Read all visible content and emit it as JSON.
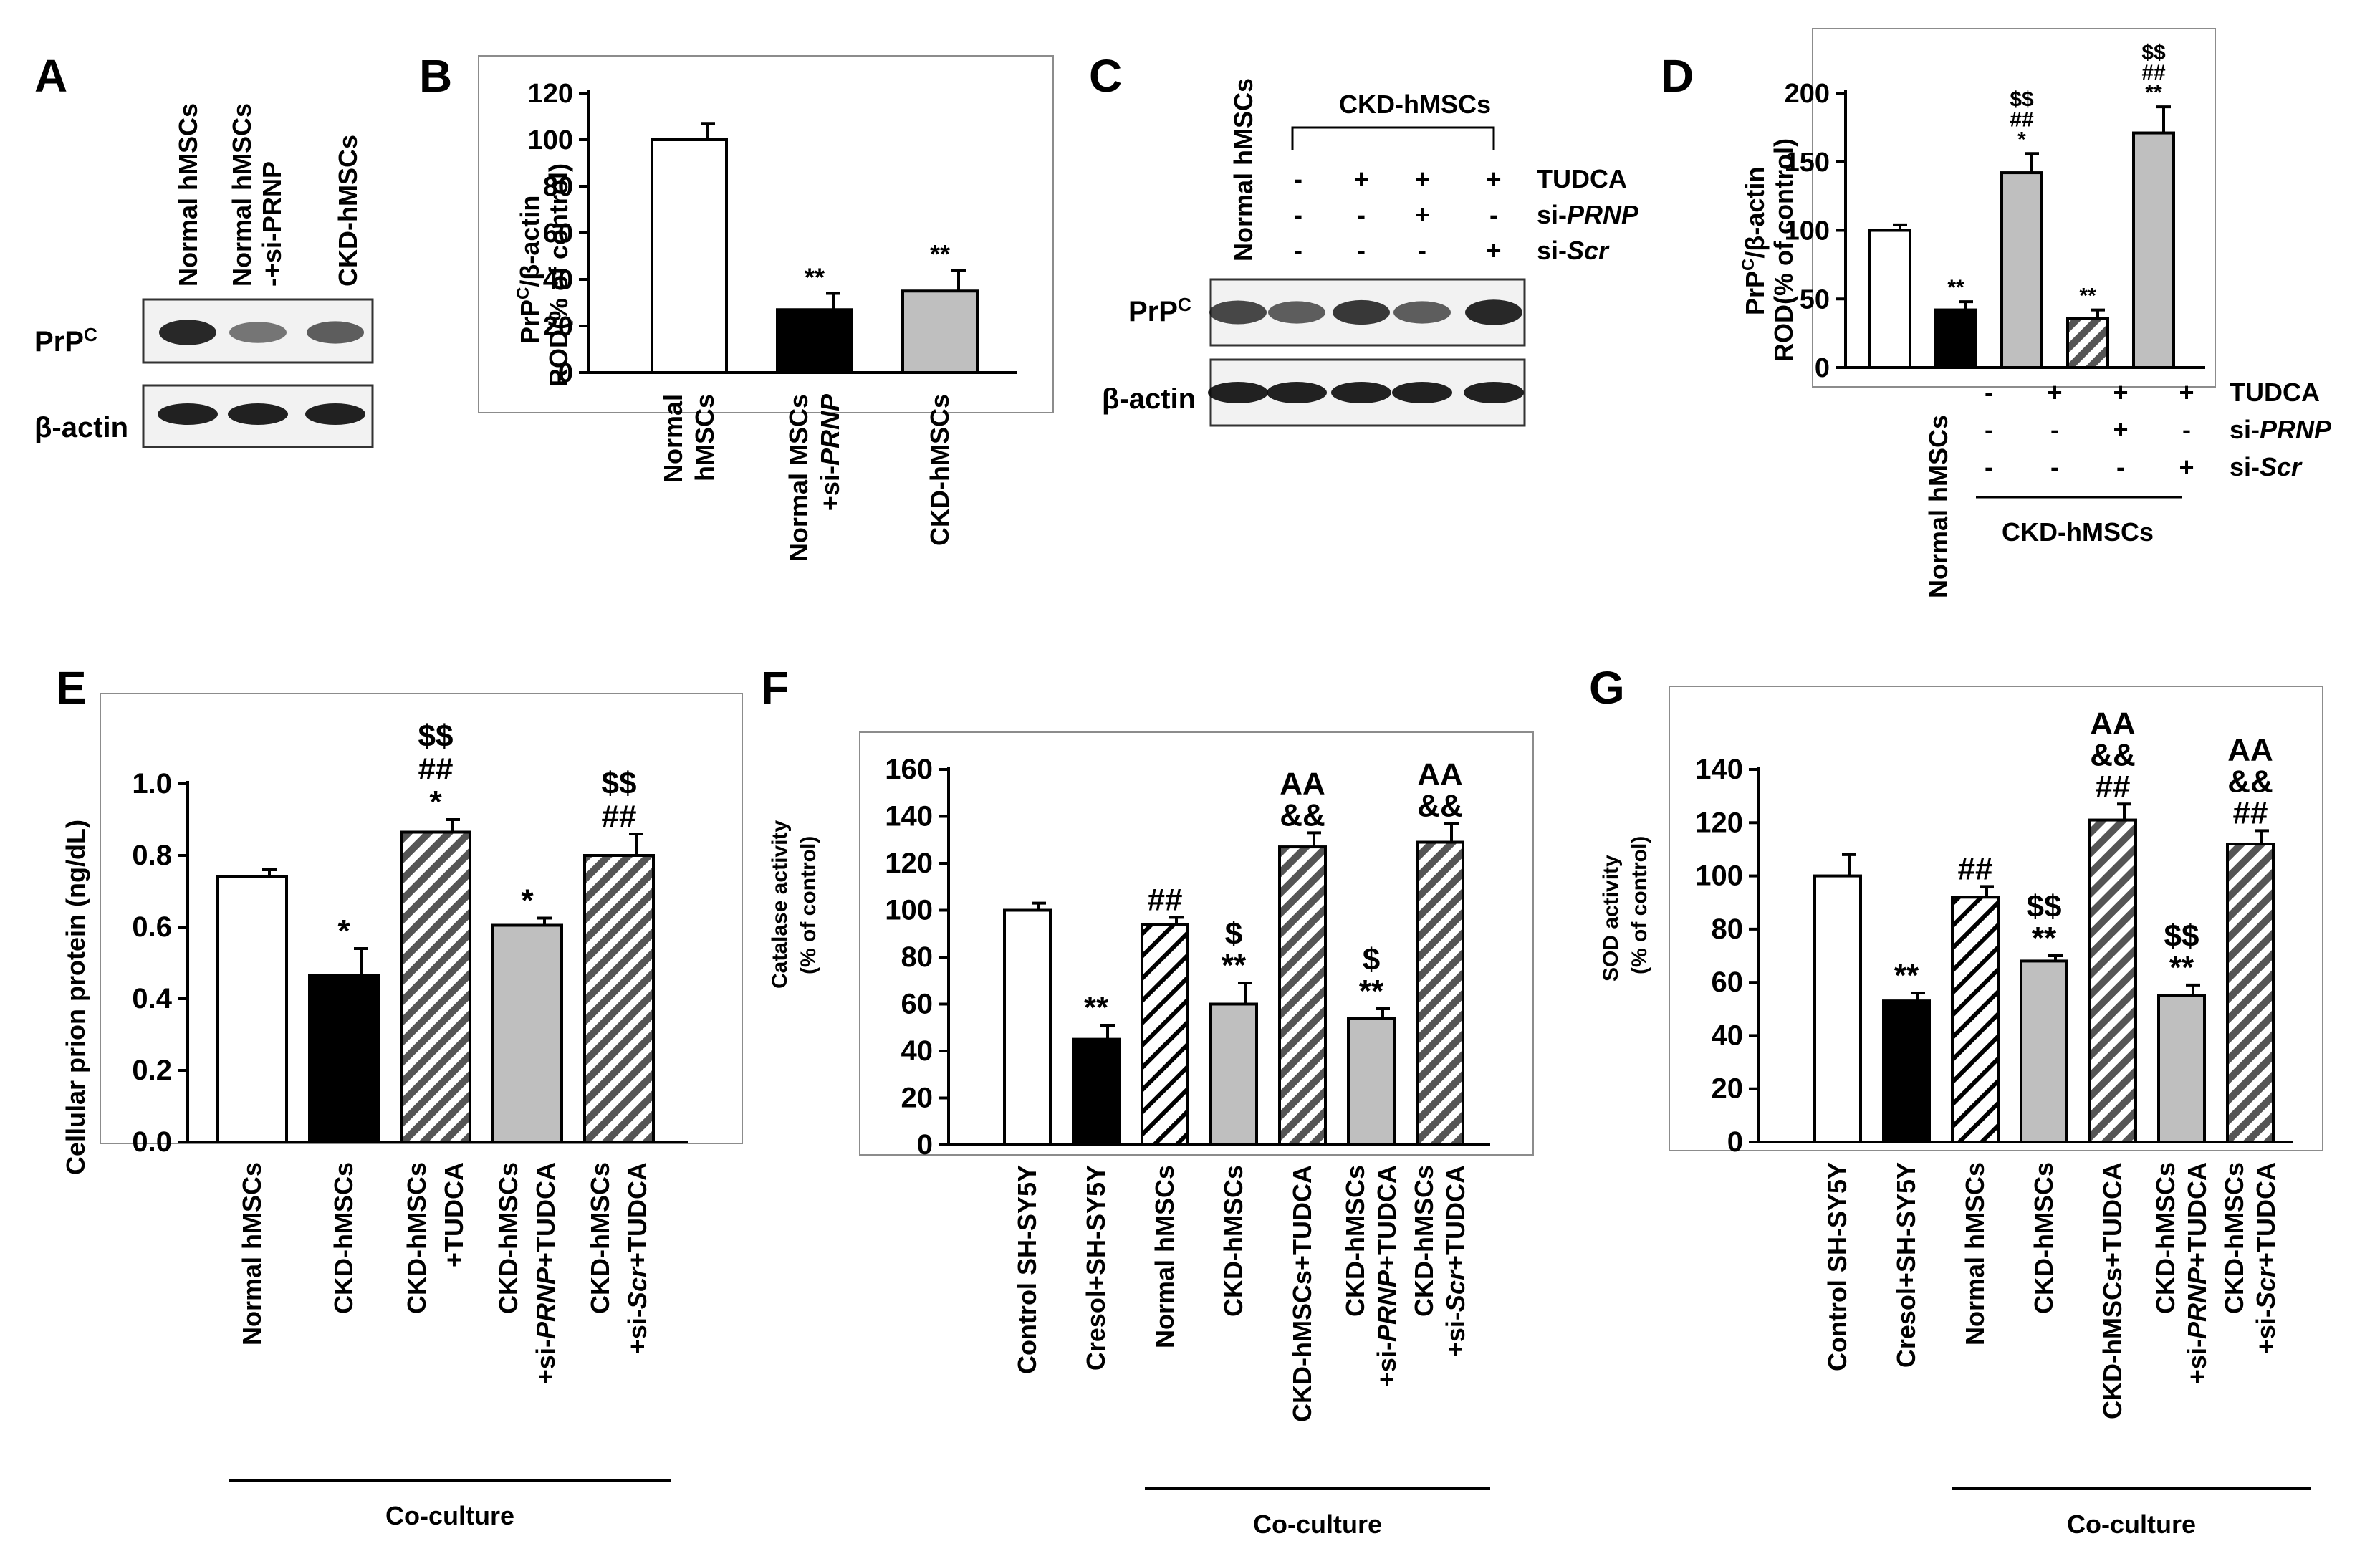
{
  "figure": {
    "panel_letters": [
      "A",
      "B",
      "C",
      "D",
      "E",
      "F",
      "G"
    ]
  },
  "blot_a": {
    "lanes": [
      "Normal hMSCs",
      "Normal hMSCs",
      "-+si-PRNP",
      "CKD-hMSCs"
    ],
    "rows": [
      "PrP",
      "C",
      "β-actin"
    ],
    "band_intensity": {
      "prp": [
        0.95,
        0.45,
        0.6
      ],
      "actin": [
        1,
        1,
        1
      ]
    }
  },
  "blot_c": {
    "top_lane_label": "Normal hMSCs",
    "group_label": "CKD-hMSCs",
    "conditions": [
      {
        "name": "TUDCA",
        "signs": [
          "-",
          "+",
          "+",
          "+"
        ]
      },
      {
        "name_prefix": "si-",
        "name_gene": "PRNP",
        "signs": [
          "-",
          "-",
          "+",
          "-"
        ]
      },
      {
        "name_prefix": "si-",
        "name_gene": "Scr",
        "signs": [
          "-",
          "-",
          "-",
          "+"
        ]
      }
    ],
    "rows": [
      "PrP",
      "C",
      "β-actin"
    ],
    "band_intensity": {
      "prp": [
        0.75,
        0.6,
        0.85,
        0.6,
        0.95
      ],
      "actin": [
        1,
        1,
        1,
        1,
        1
      ]
    }
  },
  "table_d": {
    "conditions": [
      {
        "name": "TUDCA",
        "signs": [
          "-",
          "+",
          "+",
          "+"
        ]
      },
      {
        "name_prefix": "si-",
        "name_gene": "PRNP",
        "signs": [
          "-",
          "-",
          "+",
          "-"
        ]
      },
      {
        "name_prefix": "si-",
        "name_gene": "Scr",
        "signs": [
          "-",
          "-",
          "-",
          "+"
        ]
      }
    ],
    "first_label": "Normal hMSCs",
    "group_label": "CKD-hMSCs"
  },
  "chart_data": [
    {
      "panel": "B",
      "type": "bar",
      "ylabel_line1": [
        "PrP",
        "C",
        "/β-actin"
      ],
      "ylabel_line2": "ROD(% of control)",
      "ylim": [
        0,
        120
      ],
      "yticks": [
        0,
        20,
        40,
        60,
        80,
        100,
        120
      ],
      "categories": [
        [
          "Normal",
          "hMSCs"
        ],
        [
          "Normal MSCs",
          "+si-PRNP"
        ],
        [
          "CKD-hMSCs"
        ]
      ],
      "values": [
        100,
        27,
        35
      ],
      "errors": [
        7,
        7,
        9
      ],
      "fills": [
        "white",
        "black",
        "gray"
      ],
      "annotations": [
        [],
        [
          "**"
        ],
        [
          "**"
        ]
      ]
    },
    {
      "panel": "D",
      "type": "bar",
      "ylabel_line1": [
        "PrP",
        "C",
        "/β-actin"
      ],
      "ylabel_line2": "ROD(% of control)",
      "ylim": [
        0,
        200
      ],
      "yticks": [
        0,
        50,
        100,
        150,
        200
      ],
      "categories": [
        "",
        "",
        "",
        "",
        ""
      ],
      "values": [
        100,
        42,
        142,
        36,
        171
      ],
      "errors": [
        4,
        6,
        14,
        6,
        19
      ],
      "fills": [
        "white",
        "black",
        "gray",
        "hatch",
        "gray"
      ],
      "annotations": [
        [],
        [
          "**"
        ],
        [
          "$$",
          "##",
          "*"
        ],
        [
          "**"
        ],
        [
          "$$",
          "##",
          "**"
        ]
      ]
    },
    {
      "panel": "E",
      "type": "bar",
      "ylabel": "Cellular prion protein (ng/dL)",
      "ylim": [
        0,
        1.0
      ],
      "yticks": [
        "0.0",
        "0.2",
        "0.4",
        "0.6",
        "0.8",
        "1.0"
      ],
      "categories": [
        [
          "Normal hMSCs"
        ],
        [
          "CKD-hMSCs"
        ],
        [
          "CKD-hMSCs",
          "+TUDCA"
        ],
        [
          "CKD-hMSCs",
          "+si-PRNP+TUDCA"
        ],
        [
          "CKD-hMSCs",
          "+si-Scr+TUDCA"
        ]
      ],
      "values": [
        0.74,
        0.465,
        0.865,
        0.605,
        0.8
      ],
      "errors": [
        0.02,
        0.075,
        0.035,
        0.02,
        0.06
      ],
      "fills": [
        "white",
        "black",
        "hatch",
        "gray",
        "hatch"
      ],
      "annotations": [
        [],
        [
          "*"
        ],
        [
          "$$",
          "##",
          "*"
        ],
        [
          "*"
        ],
        [
          "$$",
          "##"
        ]
      ],
      "bracket_label": "Co-culture"
    },
    {
      "panel": "F",
      "type": "bar",
      "ylabel_line1": "Catalase activity",
      "ylabel_line2": "(% of control)",
      "ylim": [
        0,
        160
      ],
      "yticks": [
        0,
        20,
        40,
        60,
        80,
        100,
        120,
        140,
        160
      ],
      "categories": [
        [
          "Control SH-SY5Y"
        ],
        [
          "Cresol+SH-SY5Y"
        ],
        [
          "Normal hMSCs"
        ],
        [
          "CKD-hMSCs"
        ],
        [
          "CKD-hMSCs+TUDCA"
        ],
        [
          "CKD-hMSCs",
          "+si-PRNP+TUDCA"
        ],
        [
          "CKD-hMSCs",
          "+si-Scr+TUDCA"
        ]
      ],
      "values": [
        100,
        45,
        94,
        60,
        127,
        54,
        129
      ],
      "errors": [
        3,
        6,
        3,
        9,
        6,
        4,
        8
      ],
      "fills": [
        "white",
        "black",
        "diag",
        "gray",
        "hatch",
        "gray",
        "hatch"
      ],
      "annotations": [
        [],
        [
          "**"
        ],
        [
          "##"
        ],
        [
          "$",
          "**"
        ],
        [
          "AA",
          "&&"
        ],
        [
          "$",
          "**"
        ],
        [
          "AA",
          "&&"
        ]
      ],
      "bracket_label": "Co-culture"
    },
    {
      "panel": "G",
      "type": "bar",
      "ylabel_line1": "SOD activity",
      "ylabel_line2": "(% of control)",
      "ylim": [
        0,
        140
      ],
      "yticks": [
        0,
        20,
        40,
        60,
        80,
        100,
        120,
        140
      ],
      "categories": [
        [
          "Control SH-SY5Y"
        ],
        [
          "Cresol+SH-SY5Y"
        ],
        [
          "Normal hMSCs"
        ],
        [
          "CKD-hMSCs"
        ],
        [
          "CKD-hMSCs+TUDCA"
        ],
        [
          "CKD-hMSCs",
          "+si-PRNP+TUDCA"
        ],
        [
          "CKD-hMSCs",
          "+si-Scr+TUDCA"
        ]
      ],
      "values": [
        100,
        53,
        92,
        68,
        121,
        55,
        112
      ],
      "errors": [
        8,
        3,
        4,
        2,
        6,
        4,
        5
      ],
      "fills": [
        "white",
        "black",
        "diag",
        "gray",
        "hatch",
        "gray",
        "hatch"
      ],
      "annotations": [
        [],
        [
          "**"
        ],
        [
          "##"
        ],
        [
          "$$",
          "**"
        ],
        [
          "AA",
          "&&",
          "##"
        ],
        [
          "$$",
          "**"
        ],
        [
          "AA",
          "&&",
          "##"
        ]
      ],
      "bracket_label": "Co-culture"
    }
  ]
}
